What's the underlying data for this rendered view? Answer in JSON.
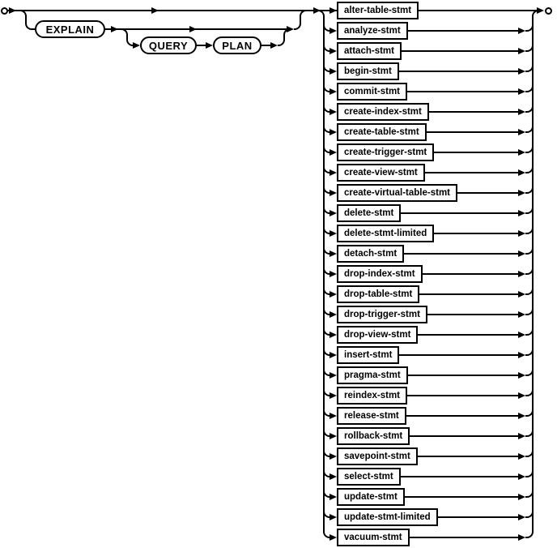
{
  "diagram": {
    "keywords": {
      "explain": "EXPLAIN",
      "query": "QUERY",
      "plan": "PLAN"
    },
    "statements": [
      "alter-table-stmt",
      "analyze-stmt",
      "attach-stmt",
      "begin-stmt",
      "commit-stmt",
      "create-index-stmt",
      "create-table-stmt",
      "create-trigger-stmt",
      "create-view-stmt",
      "create-virtual-table-stmt",
      "delete-stmt",
      "delete-stmt-limited",
      "detach-stmt",
      "drop-index-stmt",
      "drop-table-stmt",
      "drop-trigger-stmt",
      "drop-view-stmt",
      "insert-stmt",
      "pragma-stmt",
      "reindex-stmt",
      "release-stmt",
      "rollback-stmt",
      "savepoint-stmt",
      "select-stmt",
      "update-stmt",
      "update-stmt-limited",
      "vacuum-stmt"
    ]
  },
  "colors": {
    "line": "#000000",
    "background": "#ffffff",
    "box_fill": "#ffffff"
  }
}
